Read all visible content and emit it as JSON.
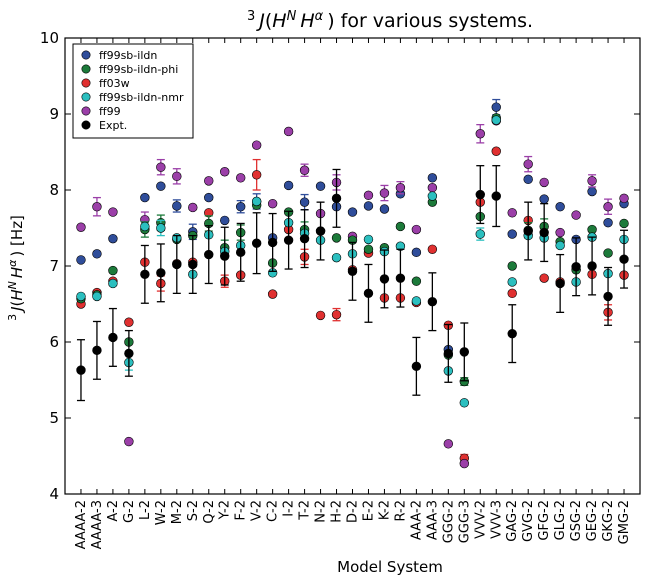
{
  "chart_data": {
    "type": "scatter",
    "title": "³ J(H^N H^α ) for various systems.",
    "xlabel": "Model System",
    "ylabel": "³ J(H^N H^α ) [Hz]",
    "ylim": [
      4,
      10
    ],
    "yticks": [
      4,
      5,
      6,
      7,
      8,
      9,
      10
    ],
    "grid": false,
    "legend_position": "top-left",
    "categories": [
      "AAAA-2",
      "AAAA-3",
      "A-2",
      "G-2",
      "L-2",
      "W-2",
      "M-2",
      "S-2",
      "Q-2",
      "Y-2",
      "F-2",
      "V-2",
      "C-2",
      "I-2",
      "T-2",
      "N-2",
      "H-2",
      "D-2",
      "E-2",
      "K-2",
      "R-2",
      "AAA-2",
      "AAA-3",
      "GGG-2",
      "GGG-3",
      "VVV-2",
      "VVV-3",
      "GAG-2",
      "GVG-2",
      "GFG-2",
      "GLG-2",
      "GSG-2",
      "GEG-2",
      "GKG-2",
      "GMG-2"
    ],
    "series": [
      {
        "name": "ff99sb-ildn",
        "color": "#2f4d9a",
        "values": [
          7.08,
          7.16,
          7.36,
          null,
          7.9,
          8.05,
          7.79,
          7.45,
          7.9,
          7.6,
          7.78,
          7.85,
          7.37,
          8.06,
          7.84,
          8.05,
          7.78,
          7.71,
          7.79,
          7.75,
          7.95,
          7.18,
          8.16,
          5.9,
          null,
          null,
          9.09,
          7.42,
          8.14,
          7.88,
          7.78,
          7.35,
          7.98,
          7.57,
          7.82
        ],
        "errors": [
          0,
          0,
          0,
          0,
          0,
          0,
          0.08,
          0.1,
          0,
          0,
          0.08,
          0.1,
          0,
          0,
          0.1,
          0,
          0,
          0,
          0,
          0,
          0,
          0,
          0,
          0,
          0,
          0,
          0.1,
          0,
          0,
          0,
          0,
          0,
          0,
          0,
          0
        ]
      },
      {
        "name": "ff99sb-ildn-phi",
        "color": "#1c7a3a",
        "values": [
          6.57,
          6.62,
          6.94,
          6.0,
          7.48,
          7.57,
          7.35,
          7.4,
          7.56,
          7.24,
          7.44,
          7.8,
          7.04,
          7.71,
          7.48,
          7.46,
          7.37,
          7.34,
          7.22,
          7.24,
          7.52,
          6.8,
          7.84,
          5.83,
          5.48,
          7.65,
          8.95,
          7.0,
          7.47,
          7.52,
          7.32,
          6.95,
          7.48,
          7.17,
          7.56
        ],
        "errors": [
          0,
          0,
          0,
          0,
          0.1,
          0.1,
          0,
          0,
          0.1,
          0.1,
          0.1,
          0,
          0,
          0,
          0.1,
          0,
          0,
          0,
          0,
          0,
          0,
          0,
          0,
          0,
          0.05,
          0,
          0,
          0,
          0.1,
          0.1,
          0,
          0,
          0,
          0,
          0
        ],
        "draw_order": 3
      },
      {
        "name": "ff03w",
        "color": "#e03030",
        "values": [
          6.5,
          6.65,
          6.8,
          6.26,
          7.05,
          6.77,
          7.03,
          7.05,
          7.7,
          6.8,
          6.88,
          8.2,
          6.63,
          7.48,
          7.12,
          6.35,
          6.36,
          6.95,
          7.17,
          6.58,
          6.58,
          6.52,
          7.22,
          6.22,
          4.47,
          7.84,
          8.51,
          6.64,
          7.6,
          6.84,
          6.79,
          6.95,
          6.89,
          6.39,
          6.88
        ],
        "errors": [
          0,
          0,
          0,
          0,
          0,
          0.1,
          0,
          0,
          0,
          0.08,
          0,
          0.2,
          0,
          0,
          0.1,
          0,
          0.08,
          0,
          0,
          0,
          0,
          0,
          0,
          0,
          0.05,
          0,
          0,
          0,
          0,
          0,
          0,
          0,
          0,
          0.1,
          0
        ]
      },
      {
        "name": "ff99sb-ildn-nmr",
        "color": "#2bbfbf",
        "values": [
          6.6,
          6.6,
          6.77,
          5.73,
          7.52,
          7.5,
          7.37,
          6.89,
          7.41,
          7.19,
          7.27,
          7.85,
          6.91,
          7.57,
          7.43,
          7.34,
          7.11,
          7.16,
          7.35,
          7.19,
          7.26,
          6.54,
          7.92,
          5.62,
          5.2,
          7.42,
          8.92,
          6.79,
          7.4,
          7.37,
          7.27,
          6.79,
          7.38,
          6.9,
          7.35
        ],
        "errors": [
          0,
          0,
          0,
          0.1,
          0,
          0.1,
          0,
          0,
          0,
          0,
          0,
          0,
          0,
          0,
          0,
          0,
          0,
          0,
          0,
          0,
          0,
          0,
          0,
          0,
          0,
          0.08,
          0,
          0,
          0,
          0,
          0,
          0,
          0,
          0,
          0
        ],
        "draw_order": 4
      },
      {
        "name": "ff99",
        "color": "#9b3fa8",
        "values": [
          7.51,
          7.78,
          7.71,
          4.69,
          7.61,
          8.3,
          8.18,
          7.77,
          8.12,
          8.24,
          8.16,
          8.59,
          7.82,
          8.77,
          8.26,
          7.69,
          8.1,
          7.39,
          7.93,
          7.96,
          8.03,
          7.48,
          8.03,
          4.66,
          4.4,
          8.74,
          8.91,
          7.7,
          8.34,
          8.1,
          7.44,
          7.67,
          8.12,
          7.78,
          7.89
        ],
        "errors": [
          0,
          0.12,
          0,
          0,
          0.1,
          0.1,
          0.1,
          0,
          0,
          0,
          0,
          0,
          0,
          0,
          0.08,
          0,
          0.1,
          0,
          0,
          0.1,
          0.08,
          0,
          0,
          0,
          0,
          0.12,
          0,
          0,
          0.1,
          0,
          0,
          0,
          0.08,
          0.1,
          0
        ],
        "draw_order": 2
      },
      {
        "name": "Expt.",
        "color": "#000000",
        "values": [
          5.63,
          5.89,
          6.06,
          5.85,
          6.89,
          6.91,
          7.02,
          7.02,
          7.15,
          7.13,
          7.18,
          7.3,
          7.31,
          7.34,
          7.36,
          7.46,
          7.89,
          6.93,
          6.64,
          6.83,
          6.84,
          5.68,
          6.53,
          5.85,
          5.87,
          7.94,
          7.92,
          6.11,
          7.46,
          7.44,
          6.77,
          6.99,
          7.0,
          6.6,
          7.09
        ],
        "errors": [
          0.4,
          0.38,
          0.38,
          0.3,
          0.38,
          0.38,
          0.38,
          0.38,
          0.38,
          0.38,
          0.38,
          0.4,
          0.38,
          0.38,
          0.38,
          0.38,
          0.38,
          0.38,
          0.38,
          0.38,
          0.38,
          0.38,
          0.38,
          0.38,
          0.38,
          0.38,
          0.4,
          0.38,
          0.38,
          0.38,
          0.38,
          0.38,
          0.38,
          0.38,
          0.38
        ],
        "draw_order": 6
      }
    ]
  }
}
